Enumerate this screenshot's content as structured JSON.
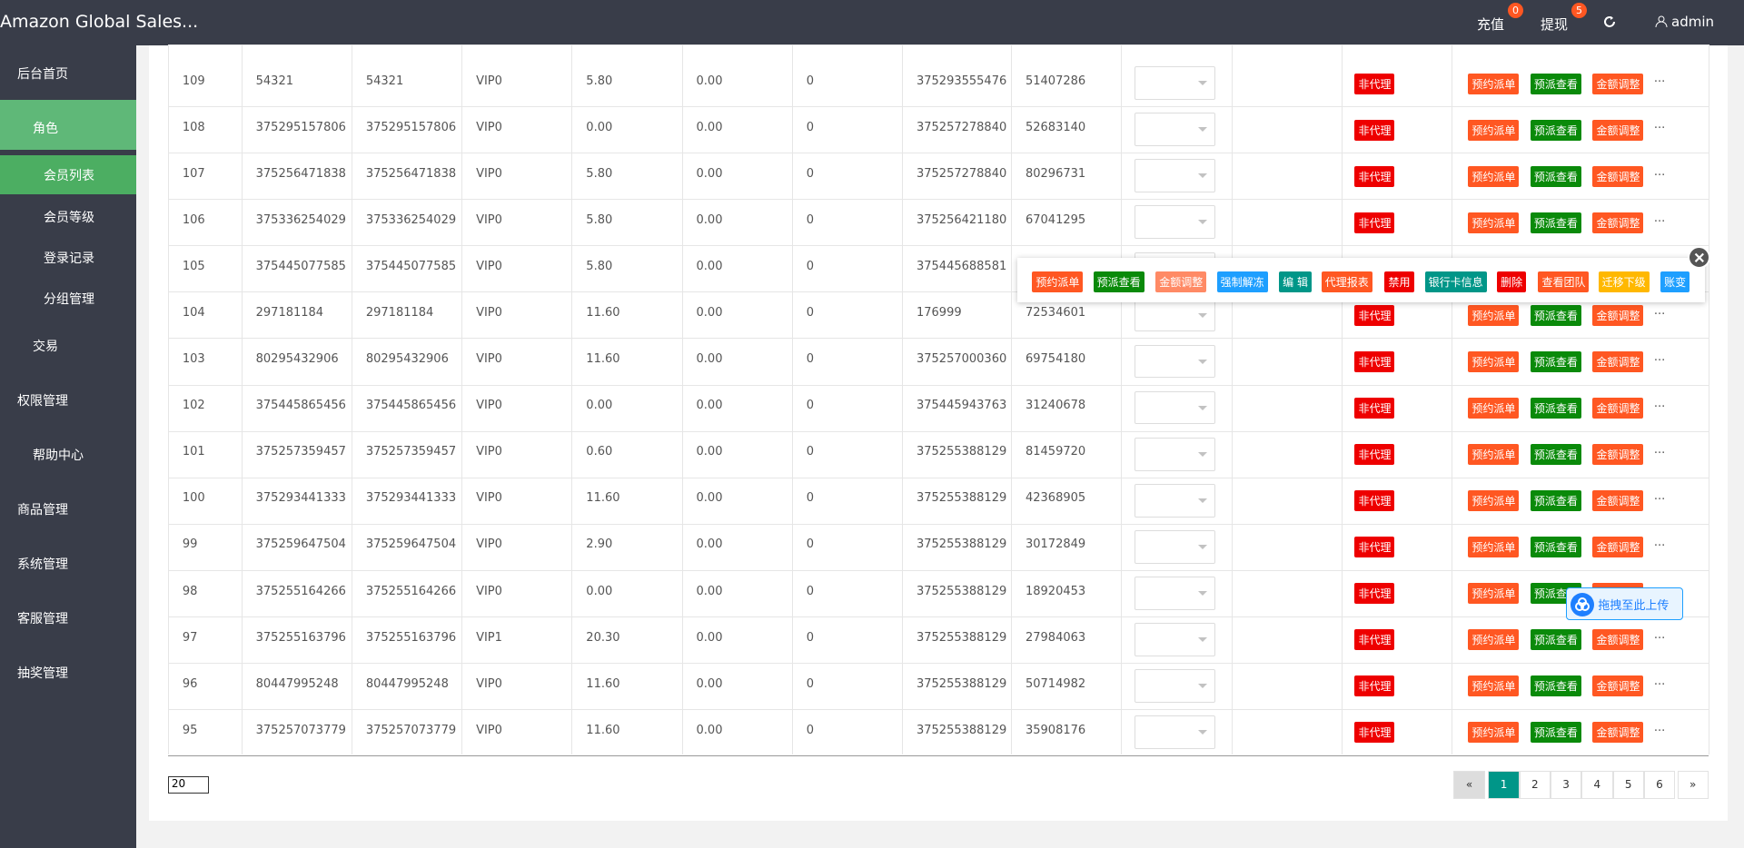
{
  "header": {
    "title": "Amazon Global Sales...",
    "recharge": "充值",
    "recharge_badge": "0",
    "withdraw": "提现",
    "withdraw_badge": "5",
    "user": "admin"
  },
  "sidebar": {
    "items": [
      "后台首页",
      "角色",
      "会员列表",
      "会员等级",
      "登录记录",
      "分组管理",
      "交易",
      "权限管理",
      "帮助中心",
      "商品管理",
      "系统管理",
      "客服管理",
      "抽奖管理"
    ]
  },
  "table": {
    "tag": "非代理",
    "actions": [
      "预约派单",
      "预派查看",
      "金额调整"
    ],
    "more": "...",
    "rows": [
      [
        "109",
        "54321",
        "54321",
        "VIP0",
        "5.80",
        "0.00",
        "0",
        "375293555476",
        "51407286"
      ],
      [
        "108",
        "375295157806",
        "375295157806",
        "VIP0",
        "0.00",
        "0.00",
        "0",
        "375257278840",
        "52683140"
      ],
      [
        "107",
        "375256471838",
        "375256471838",
        "VIP0",
        "5.80",
        "0.00",
        "0",
        "375257278840",
        "80296731"
      ],
      [
        "106",
        "375336254029",
        "375336254029",
        "VIP0",
        "5.80",
        "0.00",
        "0",
        "375256421180",
        "67041295"
      ],
      [
        "105",
        "375445077585",
        "375445077585",
        "VIP0",
        "5.80",
        "0.00",
        "0",
        "375445688581",
        null
      ],
      [
        "104",
        "297181184",
        "297181184",
        "VIP0",
        "11.60",
        "0.00",
        "0",
        "176999",
        "72534601"
      ],
      [
        "103",
        "80295432906",
        "80295432906",
        "VIP0",
        "11.60",
        "0.00",
        "0",
        "375257000360",
        "69754180"
      ],
      [
        "102",
        "375445865456",
        "375445865456",
        "VIP0",
        "0.00",
        "0.00",
        "0",
        "375445943763",
        "31240678"
      ],
      [
        "101",
        "375257359457",
        "375257359457",
        "VIP0",
        "0.60",
        "0.00",
        "0",
        "375255388129",
        "81459720"
      ],
      [
        "100",
        "375293441333",
        "375293441333",
        "VIP0",
        "11.60",
        "0.00",
        "0",
        "375255388129",
        "42368905"
      ],
      [
        "99",
        "375259647504",
        "375259647504",
        "VIP0",
        "2.90",
        "0.00",
        "0",
        "375255388129",
        "30172849"
      ],
      [
        "98",
        "375255164266",
        "375255164266",
        "VIP0",
        "0.00",
        "0.00",
        "0",
        "375255388129",
        "18920453"
      ],
      [
        "97",
        "375255163796",
        "375255163796",
        "VIP1",
        "20.30",
        "0.00",
        "0",
        "375255388129",
        "27984063"
      ],
      [
        "96",
        "80447995248",
        "80447995248",
        "VIP0",
        "11.60",
        "0.00",
        "0",
        "375255388129",
        "50714982"
      ],
      [
        "95",
        "375257073779",
        "375257073779",
        "VIP0",
        "11.60",
        "0.00",
        "0",
        "375255388129",
        "35908176"
      ]
    ]
  },
  "popup": {
    "buttons": [
      "预约派单",
      "预派查看",
      "金额调整",
      "强制解冻",
      "编 辑",
      "代理报表",
      "禁用",
      "银行卡信息",
      "删除",
      "查看团队",
      "迁移下级",
      "账变"
    ]
  },
  "pagination": {
    "page_size": "20",
    "prev": "«",
    "pages": [
      "1",
      "2",
      "3",
      "4",
      "5",
      "6"
    ],
    "next": "»"
  },
  "upload": {
    "label": "拖拽至此上传"
  }
}
